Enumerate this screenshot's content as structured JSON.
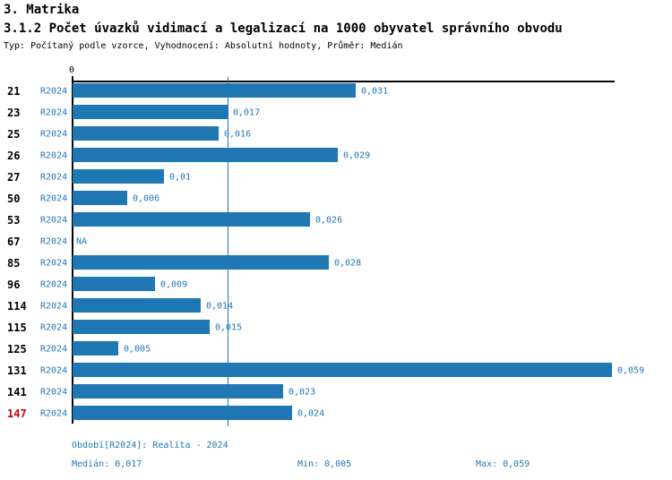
{
  "header": {
    "section_title": "3. Matrika",
    "chart_title": "3.1.2 Počet úvazků vidimací a legalizací na 1000 obyvatel správního obvodu",
    "subtitle": "Typ: Počítaný podle vzorce, Vyhodnocení: Absolutní hodnoty, Průměr: Medián"
  },
  "chart_data": {
    "type": "bar",
    "orientation": "horizontal",
    "title": "3.1.2 Počet úvazků vidimací a legalizací na 1000 obyvatel správního obvodu",
    "axis": {
      "zero_label": "0",
      "xlim": [
        0,
        0.0597
      ],
      "grid": false
    },
    "period_label": "R2024",
    "categories": [
      "21",
      "23",
      "25",
      "26",
      "27",
      "50",
      "53",
      "67",
      "85",
      "96",
      "114",
      "115",
      "125",
      "131",
      "141",
      "147"
    ],
    "values": [
      0.031,
      0.017,
      0.016,
      0.029,
      0.01,
      0.006,
      0.026,
      null,
      0.028,
      0.009,
      0.014,
      0.015,
      0.005,
      0.059,
      0.023,
      0.024
    ],
    "value_labels": [
      "0,031",
      "0,017",
      "0,016",
      "0,029",
      "0,01",
      "0,006",
      "0,026",
      "NA",
      "0,028",
      "0,009",
      "0,014",
      "0,015",
      "0,005",
      "0,059",
      "0,023",
      "0,024"
    ],
    "highlighted_category": "147",
    "median_value": 0.017,
    "bar_color": "#1f77b4",
    "highlight_color": "#d40000",
    "text_color": "#1f77b4"
  },
  "footer": {
    "period": "Období[R2024]: Realita - 2024",
    "median": "Medián: 0,017",
    "min": "Min: 0,005",
    "max": "Max: 0,059"
  }
}
